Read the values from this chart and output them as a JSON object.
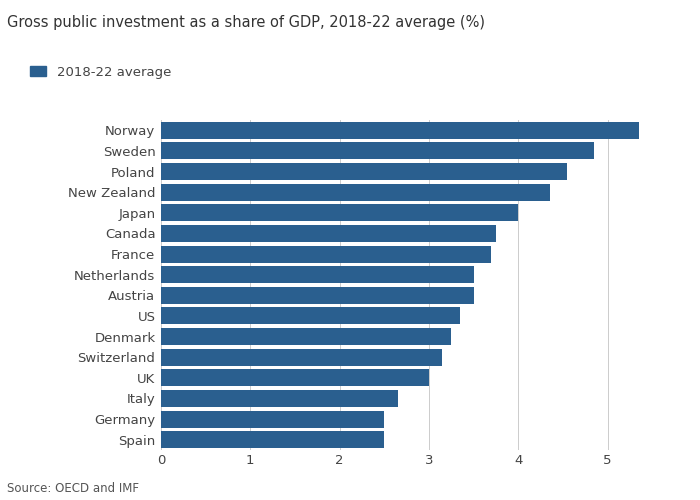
{
  "title": "Gross public investment as a share of GDP, 2018-22 average (%)",
  "legend_label": "2018-22 average",
  "source": "Source: OECD and IMF",
  "bar_color": "#2a5f8f",
  "background_color": "#ffffff",
  "countries": [
    "Norway",
    "Sweden",
    "Poland",
    "New Zealand",
    "Japan",
    "Canada",
    "France",
    "Netherlands",
    "Austria",
    "US",
    "Denmark",
    "Switzerland",
    "UK",
    "Italy",
    "Germany",
    "Spain"
  ],
  "values": [
    5.35,
    4.85,
    4.55,
    4.35,
    4.0,
    3.75,
    3.7,
    3.5,
    3.5,
    3.35,
    3.25,
    3.15,
    3.0,
    2.65,
    2.5,
    2.5
  ],
  "xlim": [
    0,
    5.8
  ],
  "xticks": [
    0,
    1,
    2,
    3,
    4,
    5
  ],
  "title_fontsize": 10.5,
  "legend_fontsize": 9.5,
  "tick_fontsize": 9.5,
  "source_fontsize": 8.5,
  "bar_height": 0.82
}
